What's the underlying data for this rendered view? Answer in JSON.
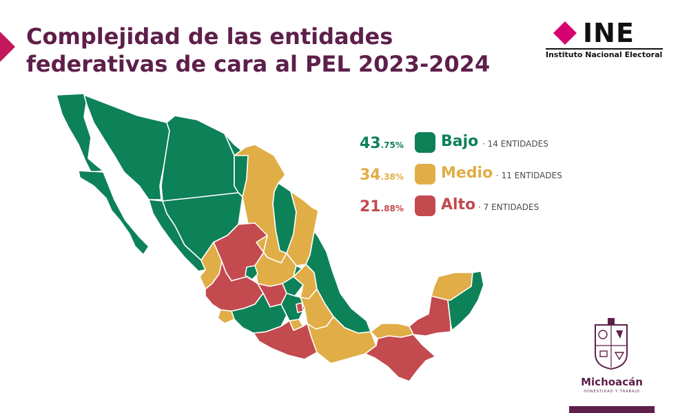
{
  "header": {
    "title_line1": "Complejidad de las entidades",
    "title_line2": "federativas de cara al PEL 2023-2024"
  },
  "logo": {
    "acronym": "INE",
    "name": "Instituto Nacional Electoral"
  },
  "legend": [
    {
      "pct_int": "43",
      "pct_dec": ".75%",
      "label": "Bajo",
      "count": "· 14 ENTIDADES",
      "color": "#0d8158"
    },
    {
      "pct_int": "34",
      "pct_dec": ".38%",
      "label": "Medio",
      "count": "· 11 ENTIDADES",
      "color": "#e0ad46"
    },
    {
      "pct_int": "21",
      "pct_dec": ".88%",
      "label": "Alto",
      "count": "· 7 ENTIDADES",
      "color": "#c34a4e"
    }
  ],
  "footer": {
    "state": "Michoacán",
    "tagline": "HONESTIDAD Y TRABAJO"
  },
  "colors": {
    "brand_purple": "#5e1f4a",
    "ine_magenta": "#d6006f",
    "bajo": "#0d8158",
    "medio": "#e0ad46",
    "alto": "#c34a4e"
  }
}
